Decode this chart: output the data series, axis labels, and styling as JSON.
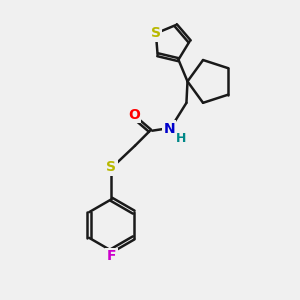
{
  "bg_color": "#f0f0f0",
  "bond_color": "#1a1a1a",
  "bond_width": 1.8,
  "atom_colors": {
    "S": "#b8b800",
    "O": "#ff0000",
    "N": "#0000cc",
    "F": "#cc00cc",
    "H": "#008888",
    "C": "#1a1a1a"
  },
  "xlim": [
    0,
    10
  ],
  "ylim": [
    -9,
    5
  ]
}
